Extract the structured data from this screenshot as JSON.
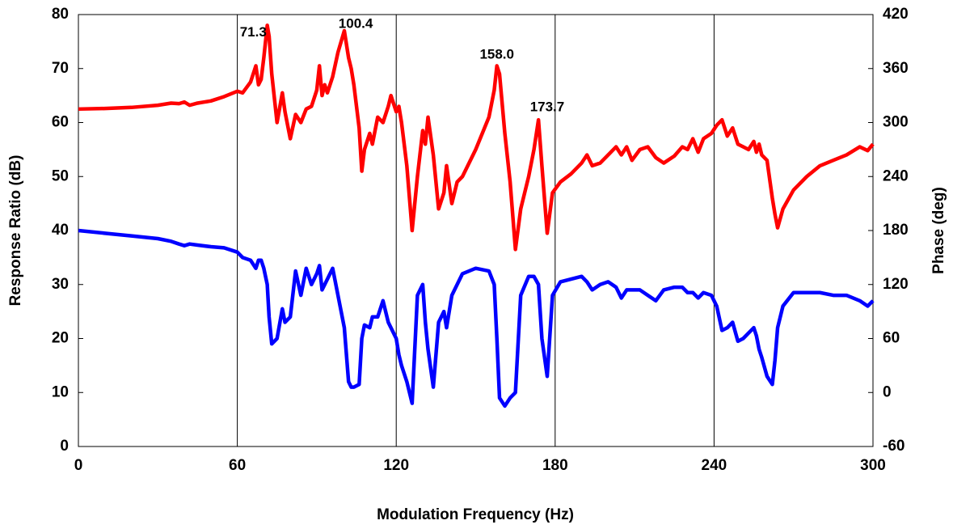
{
  "chart_data": {
    "type": "line",
    "xlabel": "Modulation Frequency (Hz)",
    "ylabel": "Response Ratio (dB)",
    "y2label": "Phase (deg)",
    "xlim": [
      0,
      300
    ],
    "xticks": [
      0,
      60,
      120,
      180,
      240,
      300
    ],
    "ylim": [
      0,
      80
    ],
    "yticks": [
      0,
      10,
      20,
      30,
      40,
      50,
      60,
      70,
      80
    ],
    "y2lim": [
      -60,
      420
    ],
    "y2ticks": [
      -60,
      0,
      60,
      120,
      180,
      240,
      300,
      360,
      420
    ],
    "grid": "x",
    "x": [
      0,
      10,
      20,
      30,
      35,
      38,
      40,
      42,
      45,
      50,
      55,
      60,
      62,
      65,
      67,
      68,
      69,
      70,
      71.3,
      72,
      73,
      75,
      77,
      78,
      80,
      82,
      84,
      86,
      88,
      90,
      91,
      92,
      93,
      94,
      96,
      98,
      100.4,
      102,
      103,
      104,
      106,
      107,
      108,
      110,
      111,
      113,
      115,
      117,
      118,
      120,
      121,
      122,
      124,
      126,
      128,
      130,
      131,
      132,
      134,
      136,
      138,
      139,
      141,
      143,
      145,
      150,
      155,
      157,
      158,
      159,
      161,
      163,
      165,
      167,
      170,
      172,
      173.7,
      175,
      177,
      179,
      182,
      186,
      190,
      192,
      194,
      197,
      200,
      203,
      205,
      207,
      209,
      212,
      215,
      218,
      221,
      225,
      228,
      230,
      232,
      234,
      236,
      239,
      241,
      243,
      245,
      247,
      249,
      251,
      253,
      255,
      256,
      257,
      258,
      260,
      262,
      263,
      264,
      266,
      270,
      275,
      280,
      285,
      290,
      295,
      298,
      300
    ],
    "series": [
      {
        "color": "#ff0000",
        "values": [
          62.5,
          62.6,
          62.8,
          63.2,
          63.6,
          63.5,
          63.8,
          63.2,
          63.6,
          64,
          64.8,
          65.8,
          65.5,
          67.5,
          70.5,
          67,
          68,
          72,
          78,
          76,
          69,
          60,
          65.5,
          62,
          57,
          61.5,
          60,
          62.5,
          63,
          66,
          70.5,
          65,
          67,
          65.5,
          68.5,
          73,
          77,
          72,
          70,
          67,
          59,
          51,
          55,
          58,
          56,
          61,
          60,
          63,
          65,
          62,
          63,
          60,
          52,
          40,
          50,
          58.5,
          56,
          61,
          54,
          44,
          47,
          52,
          45,
          49,
          50,
          55,
          61,
          66,
          70.5,
          69,
          58,
          49,
          36.5,
          44,
          50,
          55,
          60.5,
          52,
          39.5,
          47,
          49,
          50.5,
          52.5,
          54,
          52,
          52.5,
          54,
          55.5,
          54,
          55.5,
          53,
          55,
          55.5,
          53.5,
          52.5,
          53.8,
          55.5,
          55,
          57,
          54.5,
          57,
          58,
          59.5,
          60.5,
          57.5,
          59,
          56,
          55.5,
          55,
          56.5,
          54.5,
          56,
          54,
          53,
          46,
          43,
          40.5,
          44,
          47.5,
          50,
          52,
          53,
          54,
          55.5,
          54.8,
          56
        ]
      },
      {
        "color": "#0000ff",
        "axis": "y2",
        "values": [
          180,
          177,
          174,
          171,
          168,
          165,
          163.2,
          165,
          163.8,
          162,
          160.8,
          156,
          150,
          147,
          138,
          147,
          147,
          138,
          120,
          84,
          54,
          60,
          93,
          78,
          84,
          135,
          108,
          138,
          120,
          132,
          141,
          114,
          120,
          126,
          138,
          108,
          72,
          12,
          6,
          6,
          9,
          60,
          75,
          72,
          84,
          84,
          102,
          78,
          72,
          60,
          42,
          30,
          12,
          -12,
          108,
          120,
          78,
          48,
          6,
          78,
          90,
          72,
          108,
          120,
          132,
          138,
          135,
          120,
          60,
          -6,
          -15,
          -6,
          0,
          108,
          129,
          129,
          120,
          60,
          18,
          108,
          123,
          126,
          129,
          123,
          114,
          120,
          123,
          117,
          105,
          114,
          114,
          114,
          108,
          102,
          114,
          117,
          117,
          111,
          111,
          105,
          111,
          108,
          96,
          69,
          72,
          78,
          57,
          60,
          66,
          72,
          63,
          48,
          39,
          18,
          9,
          36,
          72,
          96,
          111,
          111,
          111,
          108,
          108,
          102,
          96,
          102
        ]
      }
    ],
    "annotations": [
      {
        "label": "71.3",
        "x": 66,
        "y": 76.6
      },
      {
        "label": "100.4",
        "x": 104.7,
        "y": 78.2
      },
      {
        "label": "158.0",
        "x": 158,
        "y": 72.5
      },
      {
        "label": "173.7",
        "x": 177,
        "y": 62.8
      }
    ]
  }
}
